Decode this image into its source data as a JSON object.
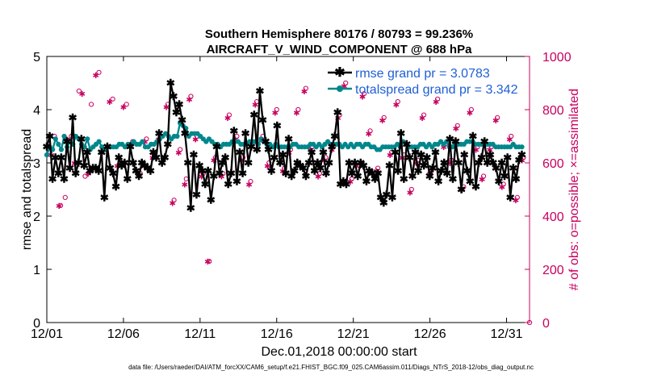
{
  "chart_data": {
    "type": "line",
    "title_line1": "Southern Hemisphere 80176 / 80793 = 99.236%",
    "title_line2": "AIRCRAFT_V_WIND_COMPONENT @ 688 hPa",
    "xlabel": "Dec.01,2018 00:00:00 start",
    "ylabel_left": "rmse and totalspread",
    "ylabel_right": "# of obs: o=possible; ×=assimilated",
    "footer": "data file: /Users/raeder/DAI/ATM_forcXX/CAM6_setup/f.e21.FHIST_BGC.f09_025.CAM6assim.011/Diags_NTrS_2018-12/obs_diag_output.nc",
    "x_tick_labels": [
      "12/01",
      "12/06",
      "12/11",
      "12/16",
      "12/21",
      "12/26",
      "12/31"
    ],
    "x_tick_days": [
      0,
      5,
      10,
      15,
      20,
      25,
      30
    ],
    "xlim": [
      0,
      31.5
    ],
    "ylim_left": [
      0,
      5
    ],
    "y_ticks_left": [
      "0",
      "1",
      "2",
      "3",
      "4",
      "5"
    ],
    "ylim_right": [
      0,
      1000
    ],
    "y_ticks_right": [
      "0",
      "200",
      "400",
      "600",
      "800",
      "1000"
    ],
    "legend": [
      {
        "name": "rmse grand pr = 3.0783",
        "color": "#000000",
        "marker": "asterisk"
      },
      {
        "name": "totalspread grand pr = 3.342",
        "color": "#00878c",
        "marker": "circle"
      }
    ],
    "colors": {
      "rmse": "#000000",
      "spread": "#00878c",
      "obs": "#c8005f",
      "legend_text": "#1f5fd6"
    },
    "series": [
      {
        "name": "rmse",
        "values": [
          3.3,
          3.5,
          2.7,
          3.1,
          2.8,
          3.1,
          2.7,
          3.4,
          2.9,
          3.85,
          2.8,
          3.0,
          3.45,
          2.95,
          3.2,
          2.85,
          2.9,
          2.9,
          2.85,
          3.2,
          2.35,
          3.3,
          2.9,
          2.8,
          2.55,
          3.1,
          2.95,
          3.0,
          2.7,
          3.3,
          3.0,
          2.85,
          2.75,
          3.0,
          2.95,
          2.9,
          2.85,
          3.2,
          3.1,
          3.55,
          3.0,
          3.1,
          3.35,
          4.5,
          4.25,
          3.95,
          4.1,
          3.8,
          3.55,
          3.0,
          2.15,
          3.15,
          2.4,
          2.95,
          2.85,
          2.6,
          2.85,
          2.3,
          2.75,
          3.3,
          2.8,
          3.0,
          3.1,
          2.6,
          2.8,
          3.6,
          2.65,
          3.2,
          2.8,
          3.55,
          3.0,
          3.3,
          3.9,
          3.25,
          4.35,
          3.8,
          3.4,
          3.25,
          2.85,
          3.1,
          3.7,
          3.0,
          3.15,
          2.8,
          3.45,
          2.75,
          2.85,
          3.0,
          2.95,
          2.9,
          2.75,
          3.0,
          3.2,
          2.85,
          3.0,
          2.9,
          3.2,
          2.8,
          3.0,
          3.3,
          3.5,
          3.95,
          2.6,
          2.65,
          2.6,
          3.0,
          2.8,
          3.0,
          2.75,
          3.0,
          2.95,
          2.65,
          2.85,
          2.8,
          2.7,
          2.8,
          2.35,
          2.25,
          2.4,
          2.95,
          2.35,
          3.2,
          2.85,
          3.55,
          2.7,
          3.35,
          3.1,
          2.75,
          3.2,
          2.85,
          3.15,
          2.95,
          3.1,
          2.75,
          2.9,
          3.2,
          2.65,
          2.85,
          3.0,
          2.8,
          3.45,
          2.7,
          3.4,
          3.0,
          2.5,
          3.15,
          2.85,
          2.65,
          3.5,
          2.55,
          3.0,
          3.1,
          3.4,
          3.0,
          3.15,
          3.0,
          2.9,
          2.65,
          3.0,
          2.75,
          3.1,
          2.35,
          2.9,
          2.7,
          3.05,
          3.15
        ]
      },
      {
        "name": "totalspread",
        "values": [
          3.15,
          3.3,
          3.25,
          3.45,
          3.35,
          3.25,
          3.5,
          3.3,
          3.4,
          3.35,
          3.5,
          3.45,
          3.35,
          3.3,
          3.45,
          3.25,
          3.3,
          3.35,
          3.4,
          3.3,
          3.25,
          3.3,
          3.3,
          3.3,
          3.3,
          3.35,
          3.35,
          3.3,
          3.35,
          3.35,
          3.4,
          3.35,
          3.35,
          3.4,
          3.3,
          3.3,
          3.35,
          3.35,
          3.4,
          3.45,
          3.5,
          3.55,
          3.5,
          3.45,
          3.5,
          3.5,
          3.75,
          3.7,
          3.65,
          3.5,
          3.55,
          3.55,
          3.55,
          3.5,
          3.45,
          3.4,
          3.45,
          3.4,
          3.35,
          3.35,
          3.3,
          3.35,
          3.35,
          3.35,
          3.4,
          3.4,
          3.4,
          3.35,
          3.35,
          3.35,
          3.4,
          3.4,
          3.4,
          3.35,
          3.45,
          3.4,
          3.35,
          3.35,
          3.3,
          3.35,
          3.3,
          3.3,
          3.3,
          3.3,
          3.3,
          3.35,
          3.35,
          3.3,
          3.3,
          3.3,
          3.3,
          3.35,
          3.35,
          3.3,
          3.35,
          3.3,
          3.35,
          3.4,
          3.35,
          3.35,
          3.35,
          3.35,
          3.3,
          3.35,
          3.3,
          3.35,
          3.3,
          3.35,
          3.35,
          3.3,
          3.35,
          3.35,
          3.3,
          3.3,
          3.25,
          3.25,
          3.3,
          3.3,
          3.3,
          3.3,
          3.3,
          3.35,
          3.3,
          3.4,
          3.35,
          3.3,
          3.3,
          3.3,
          3.3,
          3.35,
          3.35,
          3.3,
          3.35,
          3.3,
          3.35,
          3.35,
          3.4,
          3.35,
          3.4,
          3.3,
          3.3,
          3.35,
          3.35,
          3.35,
          3.35,
          3.4,
          3.4,
          3.4,
          3.35,
          3.35,
          3.35,
          3.35,
          3.35,
          3.35,
          3.35,
          3.3,
          3.3,
          3.3,
          3.3,
          3.3,
          3.3,
          3.35,
          3.3,
          3.3,
          3.3
        ]
      }
    ],
    "obs_possible": [
      [
        0.2,
        640
      ],
      [
        0.5,
        700
      ],
      [
        0.9,
        440
      ],
      [
        1.2,
        470
      ],
      [
        1.6,
        700
      ],
      [
        2.1,
        870
      ],
      [
        2.5,
        550
      ],
      [
        2.9,
        820
      ],
      [
        3.4,
        940
      ],
      [
        3.8,
        650
      ],
      [
        4.3,
        840
      ],
      [
        4.8,
        600
      ],
      [
        5.2,
        820
      ],
      [
        5.6,
        680
      ],
      [
        6.1,
        560
      ],
      [
        6.5,
        690
      ],
      [
        7.0,
        630
      ],
      [
        7.4,
        700
      ],
      [
        7.9,
        820
      ],
      [
        8.3,
        460
      ],
      [
        8.7,
        650
      ],
      [
        9.1,
        540
      ],
      [
        9.4,
        850
      ],
      [
        9.8,
        700
      ],
      [
        10.2,
        560
      ],
      [
        10.6,
        230
      ],
      [
        11.0,
        620
      ],
      [
        11.5,
        560
      ],
      [
        11.9,
        780
      ],
      [
        12.4,
        700
      ],
      [
        12.8,
        620
      ],
      [
        13.3,
        530
      ],
      [
        13.7,
        830
      ],
      [
        14.1,
        700
      ],
      [
        14.5,
        600
      ],
      [
        15.0,
        800
      ],
      [
        15.5,
        580
      ],
      [
        15.9,
        650
      ],
      [
        16.4,
        800
      ],
      [
        16.9,
        880
      ],
      [
        17.3,
        660
      ],
      [
        17.8,
        560
      ],
      [
        18.2,
        620
      ],
      [
        18.7,
        660
      ],
      [
        19.1,
        780
      ],
      [
        19.5,
        900
      ],
      [
        19.9,
        540
      ],
      [
        20.3,
        600
      ],
      [
        20.7,
        860
      ],
      [
        21.1,
        720
      ],
      [
        21.6,
        580
      ],
      [
        22.0,
        770
      ],
      [
        22.5,
        640
      ],
      [
        22.9,
        830
      ],
      [
        23.3,
        630
      ],
      [
        23.8,
        500
      ],
      [
        24.2,
        610
      ],
      [
        24.6,
        780
      ],
      [
        25.1,
        570
      ],
      [
        25.5,
        840
      ],
      [
        26.0,
        670
      ],
      [
        26.4,
        610
      ],
      [
        26.8,
        740
      ],
      [
        27.2,
        510
      ],
      [
        27.7,
        800
      ],
      [
        28.1,
        660
      ],
      [
        28.5,
        550
      ],
      [
        29.0,
        660
      ],
      [
        29.4,
        770
      ],
      [
        29.8,
        520
      ],
      [
        30.3,
        700
      ],
      [
        30.7,
        470
      ],
      [
        31.1,
        620
      ],
      [
        31.5,
        0
      ]
    ],
    "obs_assimilated": [
      [
        0.3,
        630
      ],
      [
        0.8,
        440
      ],
      [
        1.3,
        690
      ],
      [
        1.8,
        600
      ],
      [
        2.3,
        860
      ],
      [
        2.7,
        560
      ],
      [
        3.2,
        930
      ],
      [
        3.6,
        640
      ],
      [
        4.1,
        830
      ],
      [
        4.6,
        590
      ],
      [
        5.0,
        810
      ],
      [
        5.5,
        670
      ],
      [
        6.0,
        550
      ],
      [
        6.4,
        680
      ],
      [
        6.9,
        620
      ],
      [
        7.3,
        690
      ],
      [
        7.8,
        810
      ],
      [
        8.2,
        450
      ],
      [
        8.6,
        640
      ],
      [
        9.0,
        520
      ],
      [
        9.3,
        840
      ],
      [
        9.7,
        690
      ],
      [
        10.1,
        550
      ],
      [
        10.5,
        230
      ],
      [
        10.9,
        610
      ],
      [
        11.4,
        550
      ],
      [
        11.8,
        770
      ],
      [
        12.3,
        690
      ],
      [
        12.7,
        610
      ],
      [
        13.2,
        520
      ],
      [
        13.6,
        820
      ],
      [
        14.0,
        690
      ],
      [
        14.4,
        590
      ],
      [
        14.9,
        790
      ],
      [
        15.4,
        570
      ],
      [
        15.8,
        640
      ],
      [
        16.3,
        790
      ],
      [
        16.8,
        870
      ],
      [
        17.2,
        650
      ],
      [
        17.7,
        550
      ],
      [
        18.1,
        610
      ],
      [
        18.6,
        650
      ],
      [
        19.0,
        770
      ],
      [
        19.4,
        890
      ],
      [
        19.8,
        530
      ],
      [
        20.2,
        590
      ],
      [
        20.6,
        850
      ],
      [
        21.0,
        710
      ],
      [
        21.5,
        570
      ],
      [
        21.9,
        760
      ],
      [
        22.4,
        630
      ],
      [
        22.8,
        820
      ],
      [
        23.2,
        620
      ],
      [
        23.7,
        490
      ],
      [
        24.1,
        600
      ],
      [
        24.5,
        770
      ],
      [
        25.0,
        560
      ],
      [
        25.4,
        830
      ],
      [
        25.9,
        660
      ],
      [
        26.3,
        600
      ],
      [
        26.7,
        730
      ],
      [
        27.1,
        500
      ],
      [
        27.6,
        790
      ],
      [
        28.0,
        650
      ],
      [
        28.4,
        540
      ],
      [
        28.9,
        650
      ],
      [
        29.3,
        760
      ],
      [
        29.7,
        510
      ],
      [
        30.2,
        690
      ],
      [
        30.6,
        460
      ],
      [
        31.0,
        610
      ]
    ]
  }
}
